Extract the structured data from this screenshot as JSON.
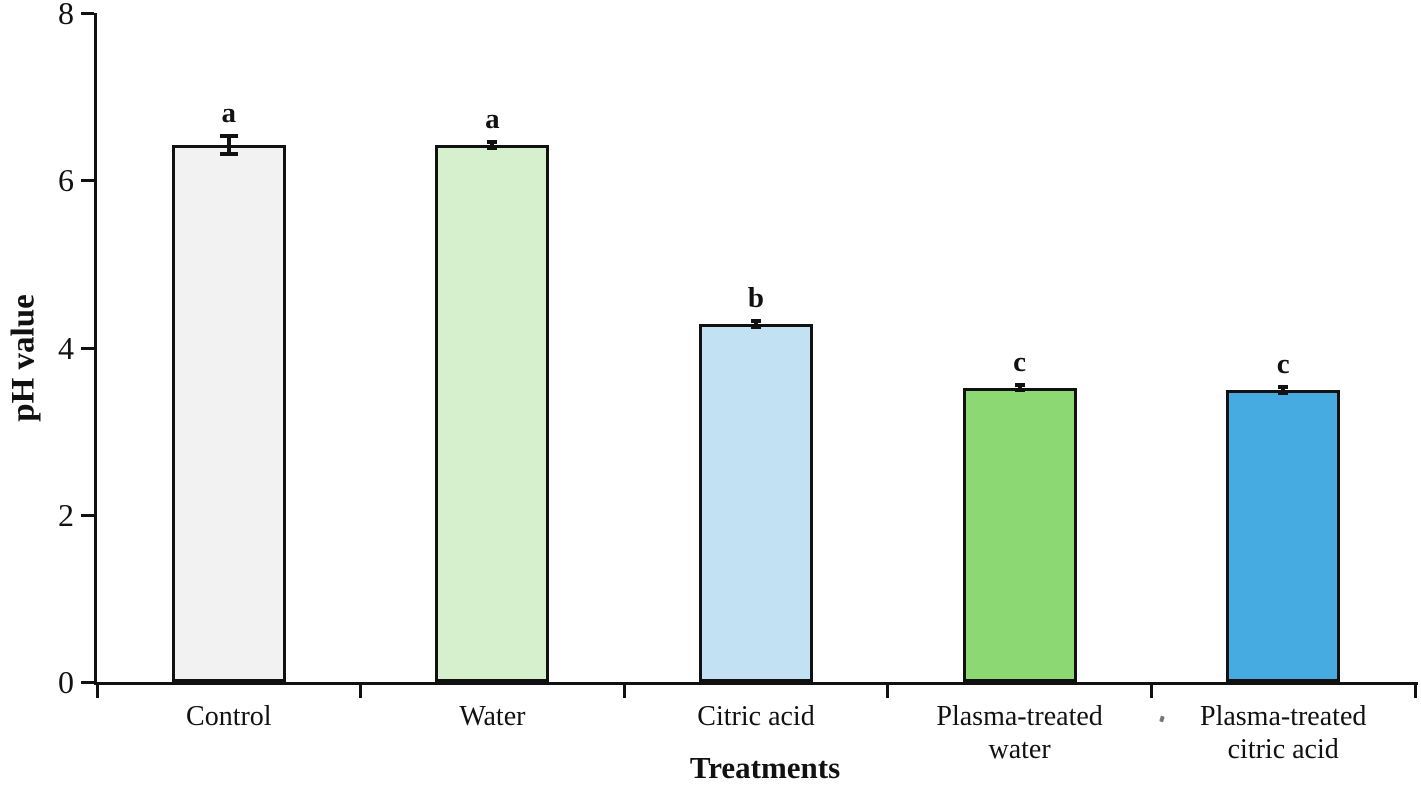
{
  "figure": {
    "background": "#ffffff",
    "axis_color": "#111111"
  },
  "chart_data": {
    "type": "bar",
    "title": "",
    "xlabel": "Treatments",
    "ylabel": "pH value",
    "ylim": [
      0,
      8
    ],
    "yticks": [
      "0",
      "2",
      "4",
      "6",
      "8"
    ],
    "grid": false,
    "legend": "none",
    "categories": [
      "Control",
      "Water",
      "Citric acid",
      "Plasma-treated water",
      "Plasma-treated citric acid"
    ],
    "x_tick_label_lines": [
      [
        "Control"
      ],
      [
        "Water"
      ],
      [
        "Citric acid"
      ],
      [
        "Plasma-treated",
        "water"
      ],
      [
        "Plasma-treated",
        "citric acid"
      ]
    ],
    "values": [
      6.42,
      6.42,
      4.28,
      3.52,
      3.49
    ],
    "error_bars": [
      0.11,
      0.04,
      0.04,
      0.03,
      0.04
    ],
    "sig_letters": [
      "a",
      "a",
      "b",
      "c",
      "c"
    ],
    "bar_fill_colors": [
      "#f2f2f2",
      "#d6efcd",
      "#c2e2f4",
      "#8cd973",
      "#45abe0"
    ],
    "bar_border_color": "#111111"
  }
}
